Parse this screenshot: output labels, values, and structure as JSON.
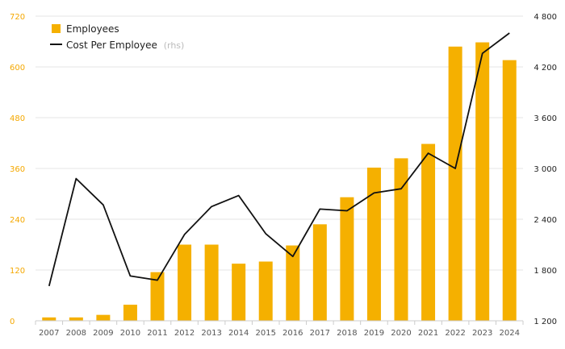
{
  "chart_data": {
    "type": "bar",
    "categories": [
      "2007",
      "2008",
      "2009",
      "2010",
      "2011",
      "2012",
      "2013",
      "2014",
      "2015",
      "2016",
      "2017",
      "2018",
      "2019",
      "2020",
      "2021",
      "2022",
      "2023",
      "2024"
    ],
    "series": [
      {
        "name": "Employees",
        "type": "bar",
        "axis": "left",
        "color": "#F5B000",
        "values": [
          8,
          8,
          14,
          38,
          115,
          180,
          180,
          135,
          140,
          178,
          228,
          292,
          362,
          384,
          418,
          648,
          658,
          616
        ]
      },
      {
        "name": "Cost Per Employee",
        "axis_note": "(rhs)",
        "type": "line",
        "axis": "right",
        "color": "#111111",
        "values": [
          1610,
          2880,
          2570,
          1730,
          1680,
          2220,
          2550,
          2680,
          2230,
          1960,
          2520,
          2500,
          2710,
          2760,
          3180,
          3000,
          4360,
          4600
        ]
      }
    ],
    "left_axis": {
      "min": 0,
      "max": 720,
      "ticks": [
        "0",
        "120",
        "240",
        "360",
        "480",
        "600",
        "720"
      ],
      "color": "#F5A800"
    },
    "right_axis": {
      "min": 1200,
      "max": 4800,
      "ticks": [
        "1 200",
        "1 800",
        "2 400",
        "3 000",
        "3 600",
        "4 200",
        "4 800"
      ],
      "color": "#222222"
    },
    "grid": true,
    "legend_position": "top-left"
  }
}
